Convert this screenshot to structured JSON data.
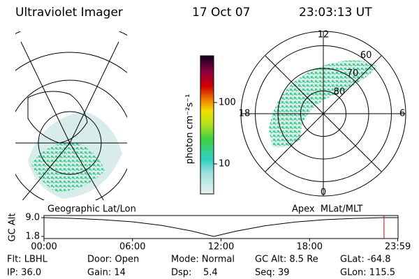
{
  "header": {
    "title": "Ultraviolet Imager",
    "date": "17 Oct 07",
    "time": "23:03:13 UT"
  },
  "colorbar": {
    "label": "photon cm⁻²s⁻¹",
    "ticks": [
      100,
      10
    ]
  },
  "polar": {
    "lat_labels": [
      80,
      70,
      60
    ],
    "mlt_labels": [
      12,
      18,
      6,
      0
    ]
  },
  "timeline": {
    "left_label": "Geographic Lat/Lon",
    "right_label": "Apex  MLat/MLT"
  },
  "chart_data": {
    "type": "line",
    "ylabel": "GC Alt",
    "x": [
      0,
      2,
      4,
      6,
      8,
      10,
      11.5,
      13,
      15,
      17,
      19,
      21,
      23,
      23.98
    ],
    "values": [
      9.0,
      8.7,
      8.2,
      7.4,
      6.0,
      3.9,
      1.8,
      3.8,
      5.9,
      7.3,
      8.2,
      8.7,
      9.0,
      9.0
    ],
    "color": "#000000",
    "marker_x": 23.05,
    "marker_color": "#d00000",
    "xlim": [
      0,
      24
    ],
    "ylim": [
      1.0,
      9.8
    ],
    "xticks": [
      {
        "value": 0,
        "label": "00:00"
      },
      {
        "value": 6,
        "label": "06:00"
      },
      {
        "value": 12,
        "label": "12:00"
      },
      {
        "value": 18,
        "label": "18:00"
      },
      {
        "value": 23.98,
        "label": "23:59"
      }
    ],
    "yticks": [
      {
        "value": 9.0,
        "label": "9.0"
      },
      {
        "value": 1.8,
        "label": "1.8"
      }
    ]
  },
  "footer": [
    [
      "Flt: LBHL",
      "Door: Open",
      "Mode: Normal",
      "GC Alt: 8.5 Re",
      "GLat: -64.8"
    ],
    [
      "IP: 36.0",
      "Gain: 14",
      "Dsp:    5.4",
      "Seq: 39",
      "GLon: 115.5"
    ]
  ]
}
